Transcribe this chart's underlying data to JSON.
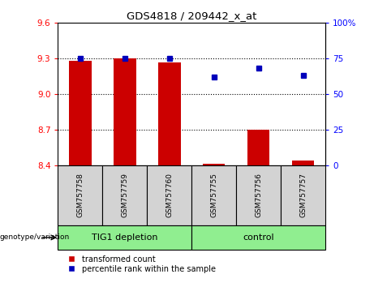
{
  "title": "GDS4818 / 209442_x_at",
  "samples": [
    "GSM757758",
    "GSM757759",
    "GSM757760",
    "GSM757755",
    "GSM757756",
    "GSM757757"
  ],
  "red_values": [
    9.28,
    9.3,
    9.27,
    8.41,
    8.7,
    8.44
  ],
  "blue_values": [
    75,
    75,
    75,
    62,
    68,
    63
  ],
  "ylim_left": [
    8.4,
    9.6
  ],
  "ylim_right": [
    0,
    100
  ],
  "yticks_left": [
    8.4,
    8.7,
    9.0,
    9.3,
    9.6
  ],
  "yticks_right": [
    0,
    25,
    50,
    75,
    100
  ],
  "group1_label": "TIG1 depletion",
  "group2_label": "control",
  "group1_color": "#90EE90",
  "group2_color": "#90EE90",
  "bar_color": "#cc0000",
  "dot_color": "#0000bb",
  "bar_bottom": 8.4,
  "legend_red_label": "transformed count",
  "legend_blue_label": "percentile rank within the sample",
  "genotype_label": "genotype/variation",
  "label_box_color": "#d3d3d3"
}
